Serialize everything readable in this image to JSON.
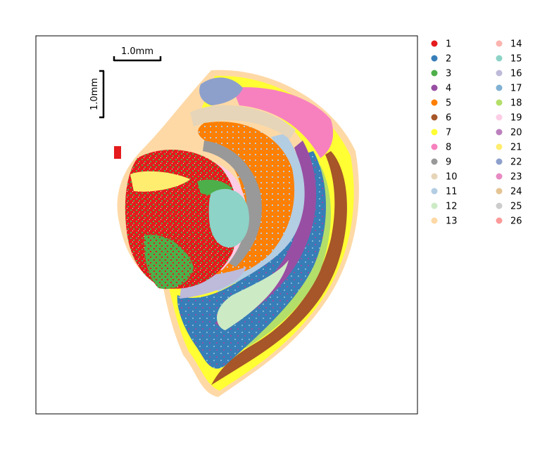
{
  "chart_data": {
    "type": "scatter",
    "title": "",
    "xlabel": "",
    "ylabel": "",
    "axes_ticks": false,
    "grid": false,
    "legend": {
      "placement": "right",
      "columns": 2
    },
    "scalebar": {
      "horizontal_label": "1.0mm",
      "vertical_label": "1.0mm"
    },
    "categories": [
      {
        "label": "1",
        "color": "#e41a1c"
      },
      {
        "label": "2",
        "color": "#377eb8"
      },
      {
        "label": "3",
        "color": "#4daf4a"
      },
      {
        "label": "4",
        "color": "#984ea3"
      },
      {
        "label": "5",
        "color": "#ff7f00"
      },
      {
        "label": "6",
        "color": "#a65628"
      },
      {
        "label": "7",
        "color": "#ffff33"
      },
      {
        "label": "8",
        "color": "#f781bf"
      },
      {
        "label": "9",
        "color": "#999999"
      },
      {
        "label": "10",
        "color": "#e6d5b8"
      },
      {
        "label": "11",
        "color": "#b3cde3"
      },
      {
        "label": "12",
        "color": "#ccebc5"
      },
      {
        "label": "13",
        "color": "#fed9a6"
      },
      {
        "label": "14",
        "color": "#fbb4ae"
      },
      {
        "label": "15",
        "color": "#8dd3c7"
      },
      {
        "label": "16",
        "color": "#bebada"
      },
      {
        "label": "17",
        "color": "#80b1d3"
      },
      {
        "label": "18",
        "color": "#b3de69"
      },
      {
        "label": "19",
        "color": "#fccde5"
      },
      {
        "label": "20",
        "color": "#bc80bd"
      },
      {
        "label": "21",
        "color": "#ffed6f"
      },
      {
        "label": "22",
        "color": "#8da0cb"
      },
      {
        "label": "23",
        "color": "#e78ac3"
      },
      {
        "label": "24",
        "color": "#e5c494"
      },
      {
        "label": "25",
        "color": "#cccccc"
      },
      {
        "label": "26",
        "color": "#fb9a99"
      }
    ]
  }
}
